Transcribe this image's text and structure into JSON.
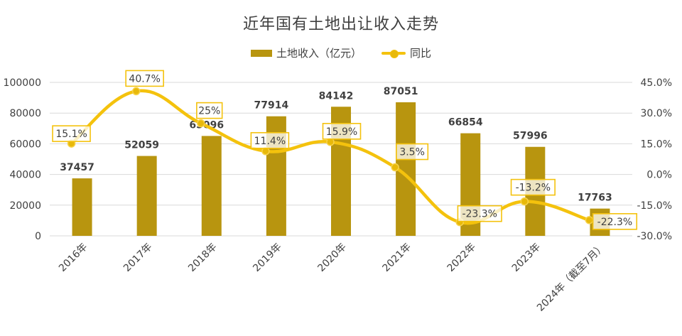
{
  "chart_data": {
    "type": "bar+line",
    "title": "近年国有土地出让收入走势",
    "categories": [
      "2016年",
      "2017年",
      "2018年",
      "2019年",
      "2020年",
      "2021年",
      "2022年",
      "2023年",
      "2024年（截至7月）"
    ],
    "series": [
      {
        "name": "土地收入（亿元）",
        "type": "bar",
        "axis": "left",
        "values": [
          37457,
          52059,
          65096,
          77914,
          84142,
          87051,
          66854,
          57996,
          17763
        ],
        "labels": [
          "37457",
          "52059",
          "65096",
          "77914",
          "84142",
          "87051",
          "66854",
          "57996",
          "17763"
        ]
      },
      {
        "name": "同比",
        "type": "line",
        "axis": "right",
        "values": [
          15.1,
          40.7,
          25,
          11.4,
          15.9,
          3.5,
          -23.3,
          -13.2,
          -22.3
        ],
        "labels": [
          "15.1%",
          "40.7%",
          "25%",
          "11.4%",
          "15.9%",
          "3.5%",
          "-23.3%",
          "-13.2%",
          "-22.3%"
        ]
      }
    ],
    "y_left": {
      "ylim": [
        0,
        100000
      ],
      "ticks": [
        "0",
        "20000",
        "40000",
        "60000",
        "80000",
        "100000"
      ]
    },
    "y_right": {
      "ylim": [
        -30,
        45
      ],
      "ticks": [
        "-30.0%",
        "-15.0%",
        "0.0%",
        "15.0%",
        "30.0%",
        "45.0%"
      ]
    },
    "legend_position": "top-center",
    "grid": true,
    "colors": {
      "bar": "#B8950F",
      "line": "#F4C20D",
      "label_box": "#F4C20D",
      "grid": "#D9D9D9",
      "text": "#404040"
    }
  }
}
